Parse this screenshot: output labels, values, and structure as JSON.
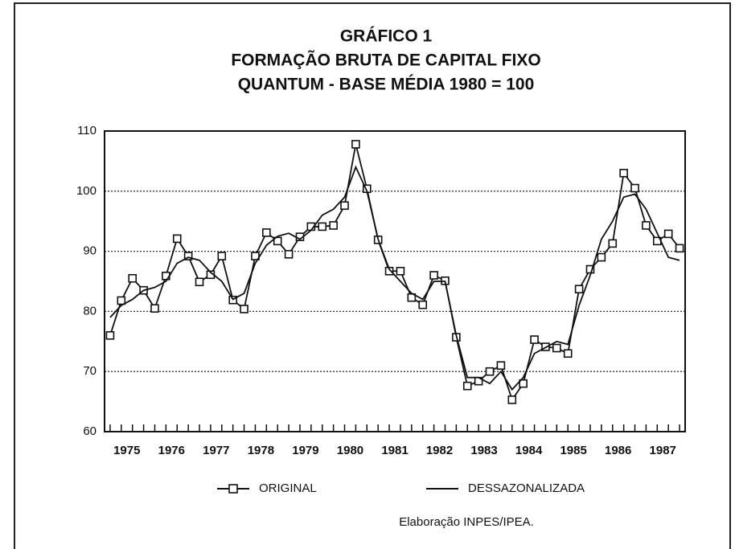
{
  "chart_data": {
    "type": "line",
    "title": "GRÁFICO 1",
    "subtitle": [
      "FORMAÇÃO BRUTA DE CAPITAL FIXO",
      "QUANTUM - BASE MÉDIA 1980 = 100"
    ],
    "source": "Elaboração INPES/IPEA.",
    "categories": [
      "1975",
      null,
      null,
      null,
      "1976",
      null,
      null,
      null,
      "1977",
      null,
      null,
      null,
      "1978",
      null,
      null,
      null,
      "1979",
      null,
      null,
      null,
      "1980",
      null,
      null,
      null,
      "1981",
      null,
      null,
      null,
      "1982",
      null,
      null,
      null,
      "1983",
      null,
      null,
      null,
      "1984",
      null,
      null,
      null,
      "1985",
      null,
      null,
      null,
      "1986",
      null,
      null,
      null,
      "1987",
      null,
      null,
      null
    ],
    "series": [
      {
        "name": "ORIGINAL",
        "color": "#111111",
        "marker": "square",
        "values": [
          76,
          81.8,
          85.5,
          83.5,
          80.5,
          85.9,
          92.1,
          89.2,
          84.9,
          86.1,
          89.2,
          81.9,
          80.4,
          89.2,
          93.1,
          91.7,
          89.5,
          92.4,
          94.1,
          94.1,
          94.3,
          97.6,
          107.8,
          100.4,
          91.9,
          86.7,
          86.7,
          82.3,
          81.1,
          86,
          85.1,
          75.7,
          67.6,
          68.4,
          70,
          71,
          65.3,
          68,
          75.3,
          74.1,
          73.9,
          73,
          83.7,
          87,
          89,
          91.3,
          103,
          100.5,
          94.3,
          91.7,
          92.9,
          90.5
        ]
      },
      {
        "name": "DESSAZONALIZADA",
        "color": "#111111",
        "marker": "none",
        "values": [
          79,
          81,
          82,
          83.5,
          84,
          85,
          88,
          89,
          88.5,
          86.5,
          85,
          82,
          83,
          88,
          91,
          92.5,
          93,
          92,
          93.5,
          96,
          97,
          99,
          104,
          100,
          92,
          87,
          85,
          83,
          82,
          85,
          85,
          76,
          69,
          69,
          68,
          70,
          67,
          69,
          73,
          74,
          75,
          74.5,
          81,
          86,
          92,
          95,
          99,
          99.5,
          97,
          93,
          89,
          88.5
        ]
      }
    ],
    "ylim": [
      60,
      110
    ],
    "yticks": [
      60,
      70,
      80,
      90,
      100,
      110
    ],
    "grid": true
  }
}
